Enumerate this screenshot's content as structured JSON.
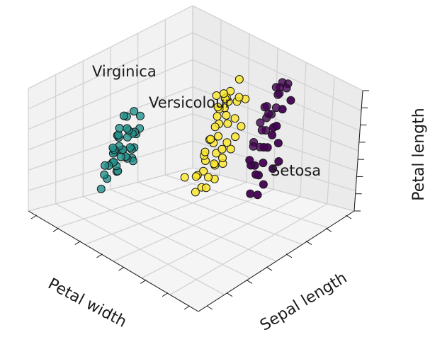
{
  "chart_data": {
    "type": "scatter",
    "projection": "3d",
    "title": "",
    "xlabel": "Petal width",
    "ylabel": "Sepal length",
    "zlabel": "Petal length",
    "tick_labels": "hidden",
    "grid": true,
    "annotations": [
      {
        "text": "Setosa",
        "series": "Setosa"
      },
      {
        "text": "Versicolour",
        "series": "Versicolour"
      },
      {
        "text": "Virginica",
        "series": "Virginica"
      }
    ],
    "colors": {
      "Setosa": "#21918c",
      "Versicolour": "#fde725",
      "Virginica": "#440154"
    },
    "series": [
      {
        "key": "Virginica",
        "points": [
          [
            -3.1,
            1.6,
            1.2
          ],
          [
            -2.9,
            1.3,
            0.6
          ],
          [
            -2.8,
            1.2,
            0.3
          ],
          [
            -2.7,
            1.3,
            0.8
          ],
          [
            -2.6,
            1.5,
            1.0
          ],
          [
            -2.6,
            1.8,
            1.9
          ],
          [
            -2.5,
            1.2,
            0.2
          ],
          [
            -2.5,
            1.7,
            1.3
          ],
          [
            -2.4,
            1.4,
            0.9
          ],
          [
            -2.4,
            2.2,
            2.1
          ],
          [
            -2.3,
            1.5,
            0.5
          ],
          [
            -2.3,
            2.1,
            1.6
          ],
          [
            -2.2,
            1.8,
            1.1
          ],
          [
            -2.1,
            1.5,
            0.7
          ],
          [
            -2.0,
            2.3,
            1.9
          ],
          [
            -2.0,
            2.0,
            1.4
          ],
          [
            -1.9,
            1.6,
            0.7
          ],
          [
            -1.8,
            2.3,
            1.6
          ],
          [
            -1.7,
            2.1,
            1.2
          ],
          [
            -1.7,
            2.6,
            2.0
          ],
          [
            -1.6,
            2.3,
            1.4
          ],
          [
            -1.5,
            2.7,
            1.8
          ],
          [
            -1.4,
            2.5,
            1.3
          ],
          [
            -1.3,
            2.9,
            1.8
          ],
          [
            -1.2,
            2.4,
            1.0
          ],
          [
            -1.1,
            2.6,
            1.3
          ],
          [
            -1.0,
            3.0,
            1.6
          ],
          [
            -1.2,
            2.2,
            0.4
          ],
          [
            -0.9,
            2.8,
            1.1
          ],
          [
            -2.8,
            1.8,
            1.5
          ],
          [
            -2.2,
            2.5,
            2.6
          ],
          [
            -2.6,
            2.3,
            2.4
          ],
          [
            -1.5,
            2.0,
            0.8
          ],
          [
            -1.9,
            1.9,
            0.9
          ],
          [
            -1.4,
            2.9,
            2.0
          ],
          [
            -2.4,
            1.9,
            1.5
          ],
          [
            -3.0,
            1.5,
            1.0
          ],
          [
            -2.0,
            2.6,
            2.3
          ]
        ]
      },
      {
        "key": "Versicolour",
        "points": [
          [
            -0.8,
            1.6,
            0.1
          ],
          [
            -0.7,
            1.9,
            0.3
          ],
          [
            -0.6,
            1.5,
            -0.4
          ],
          [
            -0.6,
            2.1,
            0.5
          ],
          [
            -0.5,
            1.8,
            0.0
          ],
          [
            -0.4,
            1.4,
            -0.7
          ],
          [
            -0.4,
            2.0,
            0.3
          ],
          [
            -0.3,
            1.7,
            -0.2
          ],
          [
            -0.3,
            2.3,
            0.8
          ],
          [
            -0.2,
            1.6,
            -0.6
          ],
          [
            -0.2,
            2.0,
            0.0
          ],
          [
            -0.1,
            1.3,
            -0.9
          ],
          [
            -0.1,
            1.9,
            -0.1
          ],
          [
            0.0,
            1.6,
            -0.5
          ],
          [
            0.0,
            2.3,
            0.5
          ],
          [
            0.1,
            1.5,
            -0.6
          ],
          [
            0.1,
            2.1,
            0.2
          ],
          [
            0.2,
            1.8,
            -0.4
          ],
          [
            0.2,
            2.4,
            0.6
          ],
          [
            0.3,
            1.6,
            -0.8
          ],
          [
            0.3,
            2.1,
            -0.1
          ],
          [
            0.4,
            1.9,
            -0.4
          ],
          [
            0.4,
            2.6,
            0.8
          ],
          [
            0.5,
            2.0,
            -0.4
          ],
          [
            0.5,
            2.4,
            0.2
          ],
          [
            0.6,
            2.2,
            -0.2
          ],
          [
            0.6,
            2.8,
            0.9
          ],
          [
            0.7,
            2.3,
            -0.3
          ],
          [
            0.7,
            2.7,
            0.4
          ],
          [
            0.8,
            2.5,
            -0.1
          ],
          [
            0.9,
            2.9,
            0.5
          ],
          [
            1.0,
            2.7,
            0.0
          ],
          [
            1.1,
            3.0,
            0.3
          ],
          [
            1.2,
            2.9,
            0.0
          ],
          [
            1.3,
            3.1,
            0.3
          ],
          [
            1.4,
            3.0,
            -0.1
          ],
          [
            1.6,
            3.1,
            0.1
          ],
          [
            -0.5,
            1.2,
            -0.5
          ],
          [
            -0.9,
            1.3,
            0.3
          ],
          [
            0.2,
            1.2,
            -0.5
          ],
          [
            -0.7,
            2.2,
            0.8
          ],
          [
            -0.3,
            2.6,
            1.2
          ],
          [
            0.1,
            2.7,
            1.0
          ],
          [
            -0.1,
            2.5,
            1.1
          ],
          [
            0.8,
            3.2,
            0.9
          ]
        ]
      },
      {
        "key": "Setosa",
        "points": [
          [
            0.8,
            0.1,
            0.6
          ],
          [
            0.9,
            0.2,
            0.4
          ],
          [
            1.0,
            0.1,
            0.5
          ],
          [
            1.0,
            0.3,
            0.7
          ],
          [
            1.1,
            0.3,
            0.6
          ],
          [
            1.1,
            -0.1,
            0.2
          ],
          [
            1.2,
            0.2,
            0.4
          ],
          [
            1.2,
            0.5,
            0.9
          ],
          [
            1.3,
            0.0,
            0.2
          ],
          [
            1.3,
            0.4,
            0.5
          ],
          [
            1.4,
            0.2,
            0.3
          ],
          [
            1.4,
            -0.2,
            -0.1
          ],
          [
            1.5,
            0.3,
            0.4
          ],
          [
            1.5,
            0.6,
            0.7
          ],
          [
            1.6,
            0.1,
            0.1
          ],
          [
            1.6,
            0.4,
            0.3
          ],
          [
            1.7,
            0.2,
            0.0
          ],
          [
            1.7,
            0.6,
            0.5
          ],
          [
            1.8,
            0.3,
            0.2
          ],
          [
            1.8,
            0.7,
            0.6
          ],
          [
            1.9,
            0.2,
            -0.2
          ],
          [
            1.9,
            0.5,
            0.2
          ],
          [
            2.0,
            0.4,
            0.0
          ],
          [
            2.0,
            0.8,
            0.5
          ],
          [
            2.1,
            0.5,
            0.0
          ],
          [
            2.2,
            0.7,
            0.2
          ],
          [
            2.2,
            0.3,
            -0.4
          ],
          [
            2.3,
            0.6,
            -0.1
          ],
          [
            2.4,
            0.8,
            0.1
          ],
          [
            2.5,
            0.9,
            0.0
          ],
          [
            2.6,
            1.0,
            0.1
          ],
          [
            2.7,
            1.2,
            0.3
          ],
          [
            1.0,
            -0.2,
            0.3
          ],
          [
            1.2,
            0.6,
            1.0
          ],
          [
            1.4,
            0.6,
            0.8
          ],
          [
            1.6,
            0.9,
            1.0
          ],
          [
            1.8,
            0.0,
            -0.3
          ],
          [
            2.0,
            1.0,
            0.9
          ],
          [
            2.3,
            1.0,
            0.6
          ],
          [
            1.5,
            -0.3,
            -0.4
          ]
        ]
      }
    ]
  }
}
